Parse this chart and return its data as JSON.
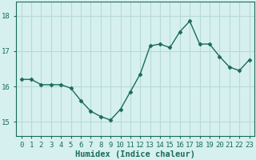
{
  "x": [
    0,
    1,
    2,
    3,
    4,
    5,
    6,
    7,
    8,
    9,
    10,
    11,
    12,
    13,
    14,
    15,
    16,
    17,
    18,
    19,
    20,
    21,
    22,
    23
  ],
  "y": [
    16.2,
    16.2,
    16.05,
    16.05,
    16.05,
    15.95,
    15.6,
    15.3,
    15.15,
    15.05,
    15.35,
    15.85,
    16.35,
    17.15,
    17.2,
    17.1,
    17.55,
    17.85,
    17.2,
    17.2,
    16.85,
    16.55,
    16.45,
    16.75
  ],
  "line_color": "#1a6b5a",
  "marker": "D",
  "marker_size": 2.5,
  "bg_color": "#d6f0f0",
  "grid_color": "#b8dada",
  "axis_color": "#1a6b5a",
  "xlabel": "Humidex (Indice chaleur)",
  "ylim": [
    14.6,
    18.4
  ],
  "yticks": [
    15,
    16,
    17,
    18
  ],
  "xticks": [
    0,
    1,
    2,
    3,
    4,
    5,
    6,
    7,
    8,
    9,
    10,
    11,
    12,
    13,
    14,
    15,
    16,
    17,
    18,
    19,
    20,
    21,
    22,
    23
  ],
  "tick_fontsize": 6.5,
  "label_fontsize": 7.5
}
